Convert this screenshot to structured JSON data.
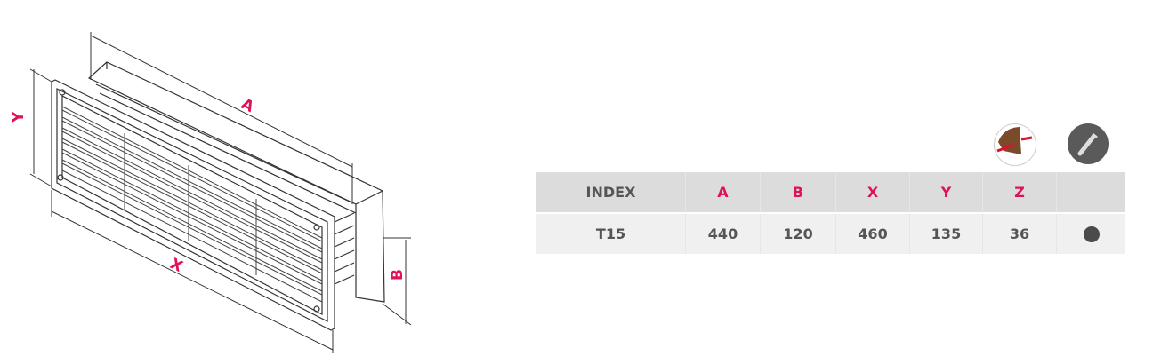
{
  "drawing": {
    "dimension_labels": {
      "A": "A",
      "B": "B",
      "X": "X",
      "Y": "Y"
    },
    "accent_color": "#e0105a"
  },
  "icons": [
    {
      "name": "wall-mount-icon"
    },
    {
      "name": "screw-mount-icon"
    }
  ],
  "table": {
    "headers": [
      "INDEX",
      "A",
      "B",
      "X",
      "Y",
      "Z",
      ""
    ],
    "rows": [
      {
        "index": "T15",
        "A": "440",
        "B": "120",
        "X": "460",
        "Y": "135",
        "Z": "36",
        "color": "#4b4b4b"
      }
    ]
  }
}
